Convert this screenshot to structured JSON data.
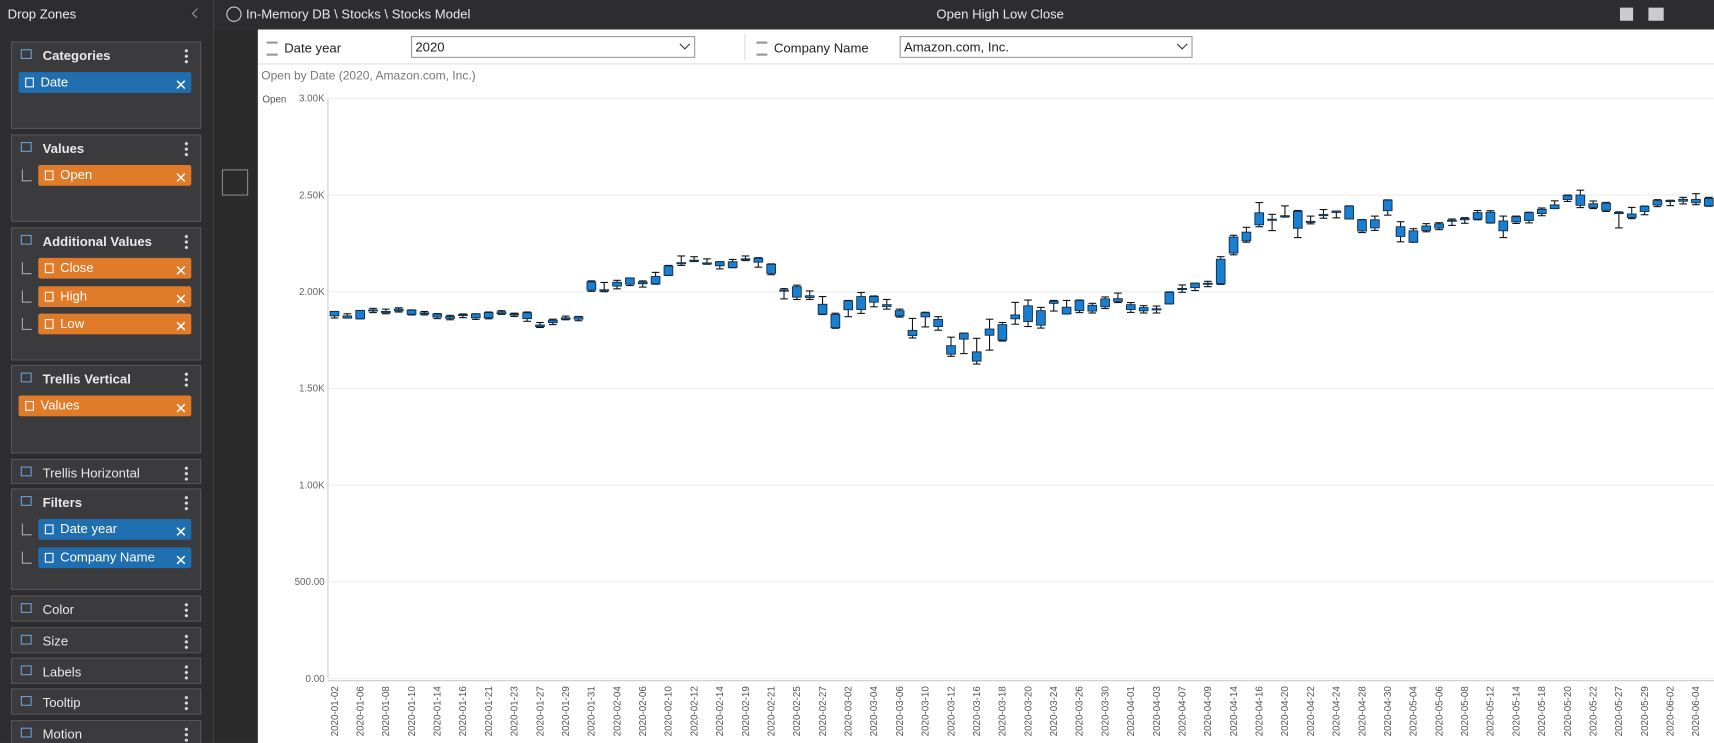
{
  "header": {
    "panel_title": "Drop Zones",
    "breadcrumb": "In-Memory DB \\ Stocks \\ Stocks Model",
    "title": "Open High Low Close"
  },
  "filters": [
    {
      "label": "Date year",
      "value": "2020"
    },
    {
      "label": "Company Name",
      "value": "Amazon.com, Inc."
    }
  ],
  "drop_zones": [
    {
      "name": "Categories",
      "pills": [
        {
          "label": "Date",
          "color": "#1f6fb0"
        }
      ]
    },
    {
      "name": "Values",
      "pills": [
        {
          "label": "Open",
          "color": "#e07b2a"
        }
      ]
    },
    {
      "name": "Additional Values",
      "pills": [
        {
          "label": "Close",
          "color": "#e07b2a"
        },
        {
          "label": "High",
          "color": "#e07b2a"
        },
        {
          "label": "Low",
          "color": "#e07b2a"
        }
      ]
    },
    {
      "name": "Trellis Vertical",
      "pills": [
        {
          "label": "Values",
          "color": "#e07b2a"
        }
      ]
    },
    {
      "name": "Trellis Horizontal",
      "pills": []
    },
    {
      "name": "Filters",
      "pills": [
        {
          "label": "Date year",
          "color": "#1f6fb0"
        },
        {
          "label": "Company Name",
          "color": "#1f6fb0"
        }
      ]
    },
    {
      "name": "Color",
      "pills": []
    },
    {
      "name": "Size",
      "pills": []
    },
    {
      "name": "Labels",
      "pills": []
    },
    {
      "name": "Tooltip",
      "pills": []
    },
    {
      "name": "Motion",
      "pills": []
    }
  ],
  "chart_data": {
    "type": "candlestick",
    "title": "Open by Date (2020, Amazon.com, Inc.)",
    "y_label": "Open",
    "color": "#1a7fd0",
    "grid": true,
    "ylim": [
      0,
      3000
    ],
    "yticks": [
      {
        "value": 0,
        "label": "0.00"
      },
      {
        "value": 500,
        "label": "500.00"
      },
      {
        "value": 1000,
        "label": "1.00K"
      },
      {
        "value": 1500,
        "label": "1.50K"
      },
      {
        "value": 2000,
        "label": "2.00K"
      },
      {
        "value": 2500,
        "label": "2.50K"
      },
      {
        "value": 3000,
        "label": "3.00K"
      }
    ],
    "categories": [
      "2020-01-02",
      null,
      "2020-01-06",
      null,
      "2020-01-08",
      null,
      "2020-01-10",
      null,
      "2020-01-14",
      null,
      "2020-01-16",
      null,
      "2020-01-21",
      null,
      "2020-01-23",
      null,
      "2020-01-27",
      null,
      "2020-01-29",
      null,
      "2020-01-31",
      null,
      "2020-02-04",
      null,
      "2020-02-06",
      null,
      "2020-02-10",
      null,
      "2020-02-12",
      null,
      "2020-02-14",
      null,
      "2020-02-19",
      null,
      "2020-02-21",
      null,
      "2020-02-25",
      null,
      "2020-02-27",
      null,
      "2020-03-02",
      null,
      "2020-03-04",
      null,
      "2020-03-06",
      null,
      "2020-03-10",
      null,
      "2020-03-12",
      null,
      "2020-03-16",
      null,
      "2020-03-18",
      null,
      "2020-03-20",
      null,
      "2020-03-24",
      null,
      "2020-03-26",
      null,
      "2020-03-30",
      null,
      "2020-04-01",
      null,
      "2020-04-03",
      null,
      "2020-04-07",
      null,
      "2020-04-09",
      null,
      "2020-04-14",
      null,
      "2020-04-16",
      null,
      "2020-04-20",
      null,
      "2020-04-22",
      null,
      "2020-04-24",
      null,
      "2020-04-28",
      null,
      "2020-04-30",
      null,
      "2020-05-04",
      null,
      "2020-05-06",
      null,
      "2020-05-08",
      null,
      "2020-05-12",
      null,
      "2020-05-14",
      null,
      "2020-05-18",
      null,
      "2020-05-20",
      null,
      "2020-05-22",
      null,
      "2020-05-27",
      null,
      "2020-05-29",
      null,
      "2020-06-02",
      null,
      "2020-06-04",
      null
    ],
    "open": [
      1875,
      1864,
      1860,
      1904,
      1898,
      1910,
      1905,
      1891,
      1885,
      1872,
      1882,
      1885,
      1865,
      1896,
      1885,
      1891,
      1820,
      1840,
      1865,
      1858,
      2051,
      2010,
      2029,
      2071,
      2041,
      2041,
      2085,
      2150,
      2163,
      2144,
      2155,
      2125,
      2167,
      2173,
      2142,
      2003,
      2026,
      1970,
      1935,
      1814,
      1907,
      1975,
      1946,
      1933,
      1875,
      1773,
      1870,
      1857,
      1721,
      1755,
      1641,
      1775,
      1750,
      1860,
      1927,
      1827,
      1951,
      1920,
      1902,
      1930,
      1922,
      1964,
      1933,
      1901,
      1912,
      1937,
      2017,
      2021,
      2044,
      2041,
      2200,
      2263,
      2346,
      2372,
      2389,
      2416,
      2364,
      2399,
      2417,
      2443,
      2372,
      2330,
      2419,
      2336,
      2256,
      2340,
      2329,
      2370,
      2372,
      2375,
      2411,
      2366,
      2361,
      2368,
      2404,
      2430,
      2477,
      2500,
      2455,
      2458,
      2404,
      2384,
      2415,
      2448,
      2467,
      2468,
      2477,
      2444
    ],
    "high": [
      1898,
      1886,
      1903,
      1914,
      1910,
      1917,
      1906,
      1898,
      1887,
      1878,
      1885,
      1886,
      1895,
      1902,
      1889,
      1895,
      1841,
      1858,
      1874,
      1872,
      2056,
      2048,
      2059,
      2071,
      2056,
      2100,
      2136,
      2185,
      2181,
      2170,
      2155,
      2167,
      2185,
      2176,
      2144,
      2016,
      2034,
      2004,
      1975,
      1889,
      1955,
      1996,
      1978,
      1960,
      1910,
      1862,
      1894,
      1871,
      1765,
      1786,
      1759,
      1858,
      1841,
      1945,
      1957,
      1919,
      1955,
      1955,
      1957,
      1940,
      1973,
      1993,
      1944,
      1928,
      1926,
      1999,
      2035,
      2044,
      2054,
      2181,
      2292,
      2333,
      2461,
      2400,
      2444,
      2420,
      2391,
      2425,
      2417,
      2444,
      2373,
      2391,
      2475,
      2362,
      2326,
      2352,
      2357,
      2376,
      2383,
      2420,
      2419,
      2391,
      2391,
      2411,
      2433,
      2470,
      2500,
      2525,
      2469,
      2462,
      2413,
      2436,
      2443,
      2476,
      2473,
      2488,
      2507,
      2488
    ],
    "low": [
      1864,
      1864,
      1860,
      1892,
      1886,
      1895,
      1880,
      1880,
      1861,
      1855,
      1866,
      1857,
      1860,
      1883,
      1872,
      1847,
      1815,
      1830,
      1855,
      1850,
      2002,
      2000,
      2015,
      2032,
      2024,
      2039,
      2084,
      2136,
      2156,
      2142,
      2118,
      2124,
      2161,
      2127,
      2088,
      1963,
      1960,
      1960,
      1882,
      1811,
      1871,
      1888,
      1922,
      1910,
      1869,
      1761,
      1818,
      1801,
      1666,
      1680,
      1626,
      1698,
      1745,
      1832,
      1820,
      1812,
      1900,
      1885,
      1892,
      1890,
      1913,
      1944,
      1893,
      1890,
      1890,
      1937,
      1997,
      2006,
      2026,
      2038,
      2191,
      2256,
      2336,
      2316,
      2386,
      2280,
      2351,
      2380,
      2382,
      2378,
      2306,
      2317,
      2396,
      2258,
      2256,
      2310,
      2321,
      2343,
      2354,
      2372,
      2355,
      2280,
      2353,
      2356,
      2393,
      2430,
      2467,
      2435,
      2430,
      2415,
      2330,
      2378,
      2398,
      2440,
      2445,
      2454,
      2450,
      2442
    ],
    "close": [
      1898,
      1875,
      1903,
      1906,
      1891,
      1901,
      1883,
      1891,
      1869,
      1862,
      1877,
      1865,
      1892,
      1887,
      1884,
      1861,
      1828,
      1853,
      1858,
      1870,
      2008,
      2004,
      2049,
      2039,
      2050,
      2079,
      2133,
      2150,
      2160,
      2149,
      2134,
      2155,
      2170,
      2153,
      2095,
      2009,
      1972,
      1979,
      1884,
      1883,
      1953,
      1908,
      1975,
      1924,
      1902,
      1800,
      1891,
      1820,
      1677,
      1785,
      1689,
      1807,
      1830,
      1880,
      1846,
      1902,
      1940,
      1885,
      1955,
      1900,
      1963,
      1950,
      1908,
      1918,
      1906,
      1997,
      2011,
      2044,
      2043,
      2168,
      2283,
      2308,
      2408,
      2375,
      2393,
      2328,
      2363,
      2399,
      2410,
      2376,
      2314,
      2372,
      2474,
      2286,
      2315,
      2317,
      2351,
      2367,
      2379,
      2409,
      2356,
      2315,
      2388,
      2409,
      2426,
      2449,
      2497,
      2447,
      2436,
      2421,
      2410,
      2402,
      2442,
      2471,
      2472,
      2478,
      2460,
      2483
    ]
  }
}
